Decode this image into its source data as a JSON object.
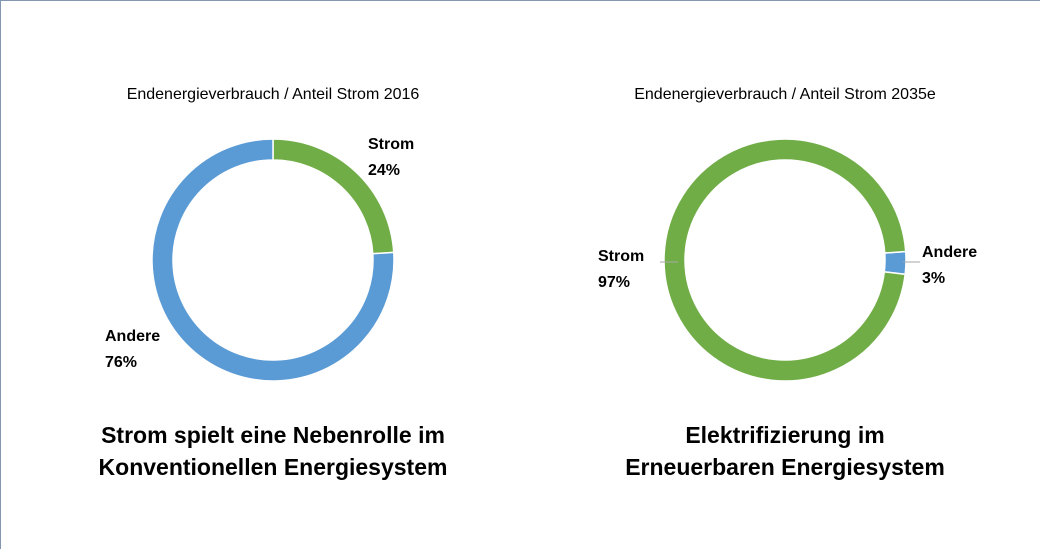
{
  "chart_data": [
    {
      "type": "donut",
      "title": "Endenergieverbrauch / Anteil Strom 2016",
      "categories": [
        "Strom",
        "Andere"
      ],
      "values": [
        24,
        76
      ],
      "value_labels": [
        "24%",
        "76%"
      ],
      "colors": [
        "#70ad47",
        "#5b9bd5"
      ],
      "caption": [
        "Strom spielt eine Nebenrolle im",
        "Konventionellen Energiesystem"
      ]
    },
    {
      "type": "donut",
      "title": "Endenergieverbrauch / Anteil Strom 2035e",
      "categories": [
        "Andere",
        "Strom"
      ],
      "values": [
        3,
        97
      ],
      "value_labels": [
        "3%",
        "97%"
      ],
      "colors": [
        "#5b9bd5",
        "#70ad47"
      ],
      "caption": [
        "Elektrifizierung im",
        "Erneuerbaren Energiesystem"
      ]
    }
  ]
}
